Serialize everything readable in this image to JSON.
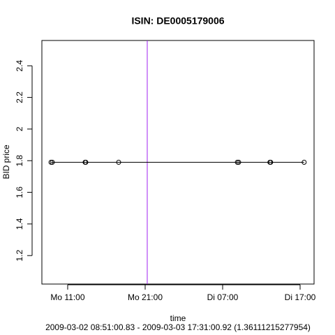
{
  "chart_data": {
    "type": "line",
    "title": "ISIN: DE0005179006",
    "xlabel": "time",
    "ylabel": "BID price",
    "subtitle": "2009-03-02 08:51:00.83 - 2009-03-03 17:31:00.92 (1.36111215277954)",
    "x": [
      8.85,
      9.02,
      13.25,
      13.34,
      17.58,
      32.9,
      33.07,
      37.1,
      37.2,
      41.52
    ],
    "series": [
      {
        "name": "BID price",
        "color": "#000000",
        "values": [
          1.79,
          1.79,
          1.79,
          1.79,
          1.79,
          1.79,
          1.79,
          1.79,
          1.79,
          1.79
        ]
      }
    ],
    "xlim": [
      7.67,
      42.8
    ],
    "xticks": [
      {
        "value": 11,
        "label": "Mo 11:00"
      },
      {
        "value": 21,
        "label": "Mo 21:00"
      },
      {
        "value": 31,
        "label": "Di 07:00"
      },
      {
        "value": 41,
        "label": "Di 17:00"
      }
    ],
    "ylim": [
      1.02,
      2.56
    ],
    "yticks": [
      1.2,
      1.4,
      1.6,
      1.8,
      2.0,
      2.2,
      2.4
    ],
    "vline": {
      "value": 21.27,
      "color": "#a020f0"
    }
  }
}
